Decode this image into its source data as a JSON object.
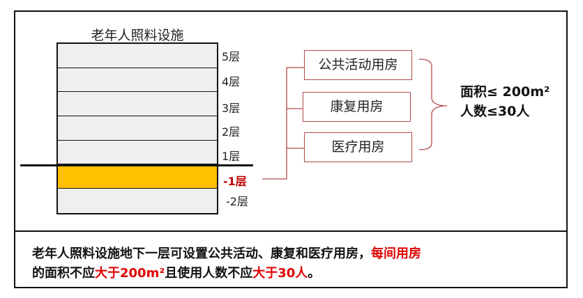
{
  "diagram": {
    "title": "老年人照料设施",
    "floors": [
      {
        "label": "5层",
        "highlighted": false
      },
      {
        "label": "4层",
        "highlighted": false
      },
      {
        "label": "3层",
        "highlighted": false
      },
      {
        "label": "2层",
        "highlighted": false
      },
      {
        "label": "1层",
        "highlighted": false
      },
      {
        "label": "-1层",
        "highlighted": true
      },
      {
        "label": "-2层",
        "highlighted": false
      }
    ],
    "rooms": [
      "公共活动用房",
      "康复用房",
      "医疗用房"
    ],
    "limits": {
      "area": "面积≤ 200m²",
      "people": "人数≤30人"
    }
  },
  "caption": {
    "line1_a": "老年人照料设施地下一层可设置公共活动、康复和医疗用房，",
    "line1_b": "每间用房",
    "line2_a": "的面积不应",
    "line2_b": "大于200m²",
    "line2_c": "且使用人数不应",
    "line2_d": "大于30人",
    "line2_e": "。"
  },
  "colors": {
    "highlight_floor": "#ffc000",
    "accent_red": "#c00000",
    "connector": "#b04a4a"
  }
}
